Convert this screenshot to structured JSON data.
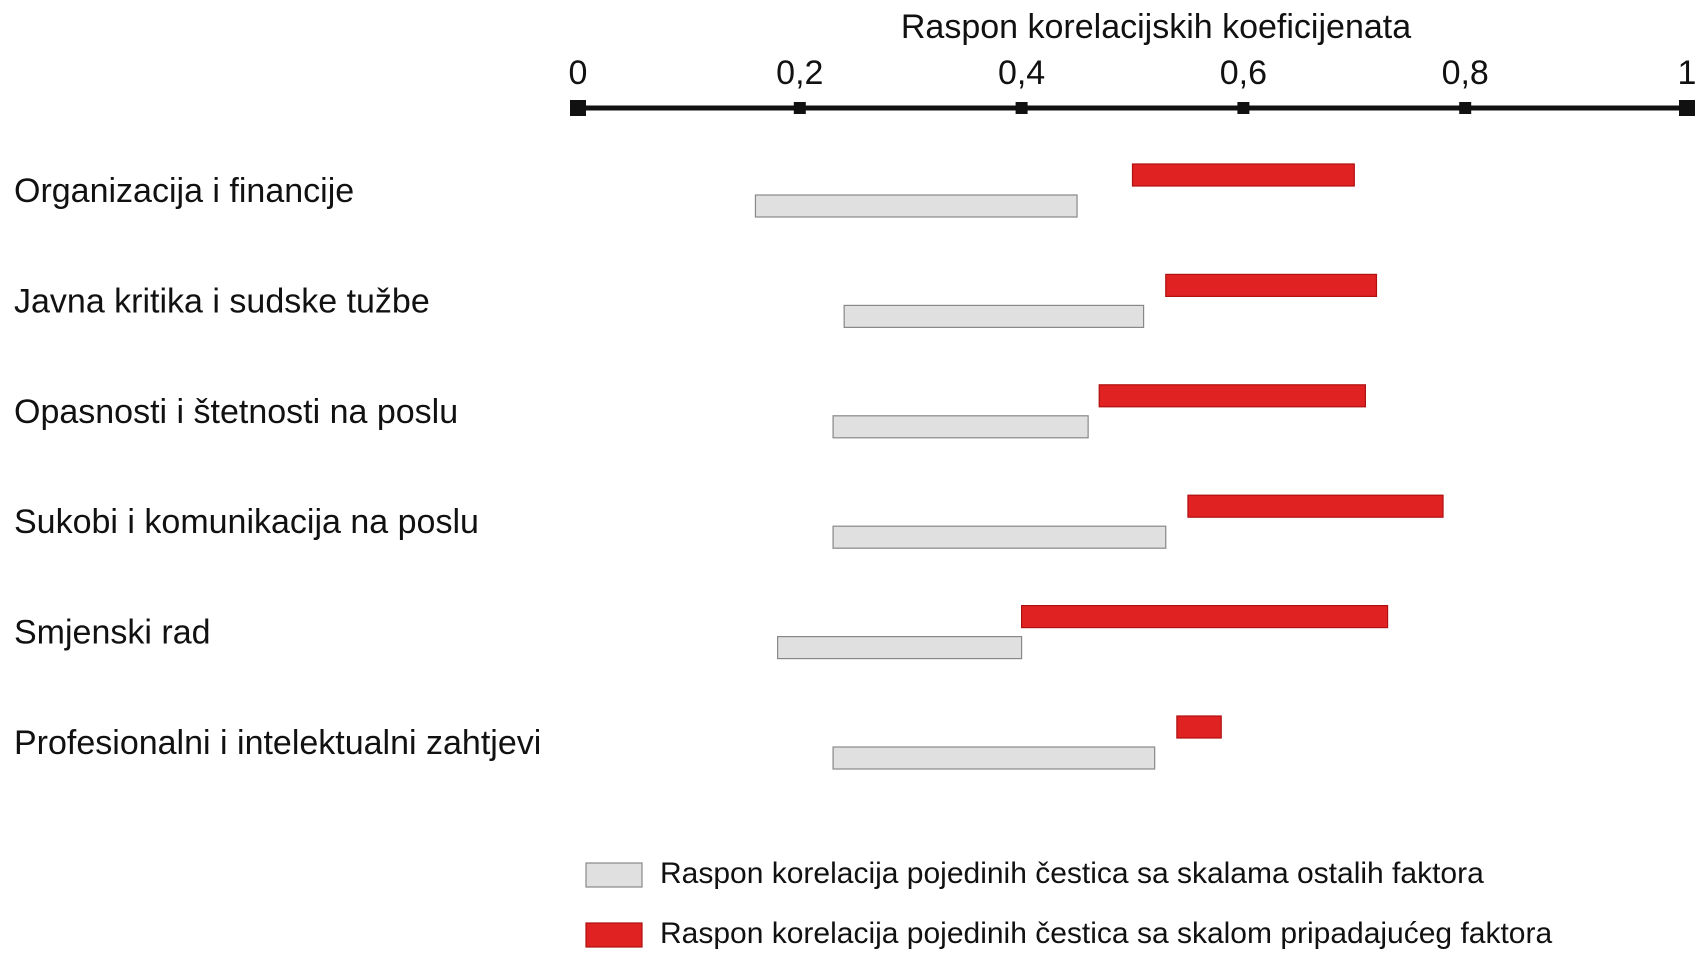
{
  "chart_data": {
    "type": "range_bar",
    "title": "Raspon korelacijskih koeficijenata",
    "categories": [
      "Organizacija i financije",
      "Javna kritika i sudske tužbe",
      "Opasnosti i štetnosti na poslu",
      "Sukobi i komunikacija na poslu",
      "Smjenski rad",
      "Profesionalni i intelektualni zahtjevi"
    ],
    "series": [
      {
        "name": "Raspon korelacija pojedinih čestica sa skalama ostalih faktora",
        "color": "#e0e0e0",
        "values": [
          [
            0.16,
            0.45
          ],
          [
            0.24,
            0.51
          ],
          [
            0.23,
            0.46
          ],
          [
            0.23,
            0.53
          ],
          [
            0.18,
            0.4
          ],
          [
            0.23,
            0.52
          ]
        ]
      },
      {
        "name": "Raspon korelacija pojedinih čestica sa skalom pripadajućeg faktora",
        "color": "#e02222",
        "values": [
          [
            0.5,
            0.7
          ],
          [
            0.53,
            0.72
          ],
          [
            0.47,
            0.71
          ],
          [
            0.55,
            0.78
          ],
          [
            0.4,
            0.73
          ],
          [
            0.54,
            0.58
          ]
        ]
      }
    ],
    "xlim": [
      0,
      1
    ],
    "xticks": [
      0,
      {
        "value": 0.2,
        "label": "0,2"
      },
      {
        "value": 0.4,
        "label": "0,4"
      },
      {
        "value": 0.6,
        "label": "0,6"
      },
      {
        "value": 0.8,
        "label": "0,8"
      },
      1
    ]
  }
}
